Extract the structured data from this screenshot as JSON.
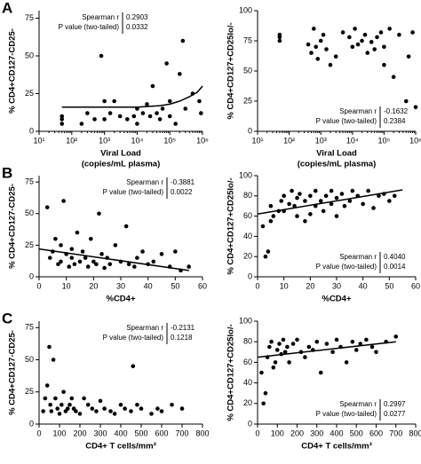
{
  "chart_data": [
    {
      "type": "scatter",
      "panel": "A",
      "ylabel": "% CD4+CD127-CD25-",
      "xlabel": [
        "Viral Load",
        "(copies/mL plasma)"
      ],
      "xscale": "log",
      "xlim": [
        10,
        1000000
      ],
      "xticks": [
        {
          "value": 10,
          "label": "10¹"
        },
        {
          "value": 100,
          "label": "10²"
        },
        {
          "value": 1000,
          "label": "10³"
        },
        {
          "value": 10000,
          "label": "10⁴"
        },
        {
          "value": 100000,
          "label": "10⁵"
        },
        {
          "value": 1000000,
          "label": "10⁶"
        }
      ],
      "ylim": [
        0,
        80
      ],
      "yticks": [
        0,
        25,
        50,
        75
      ],
      "color": "#000000",
      "stats_corner": "top-left",
      "stats": {
        "r_label": "Spearman r",
        "r": "0.2903",
        "p_label": "P value (two-tailed)",
        "p": "0.0332"
      },
      "x": [
        50,
        50,
        50,
        200,
        300,
        500,
        800,
        1000,
        1000,
        1500,
        2000,
        3000,
        5000,
        8000,
        10000,
        10000,
        15000,
        20000,
        25000,
        30000,
        40000,
        50000,
        60000,
        80000,
        100000,
        100000,
        150000,
        200000,
        250000,
        300000,
        500000,
        800000,
        900000
      ],
      "values": [
        10,
        5,
        8,
        5,
        12,
        8,
        50,
        20,
        8,
        12,
        20,
        10,
        8,
        10,
        15,
        5,
        12,
        18,
        10,
        30,
        12,
        8,
        15,
        45,
        20,
        10,
        5,
        38,
        60,
        15,
        25,
        20,
        12
      ],
      "trend": {
        "x": [
          50,
          1000,
          10000,
          50000,
          100000,
          200000,
          400000,
          700000,
          1000000
        ],
        "values": [
          16,
          16,
          16,
          17,
          18,
          20,
          23,
          26,
          30
        ]
      }
    },
    {
      "type": "scatter",
      "ylabel": "% CD4+CD127+CD25lo/-",
      "xlabel": [
        "Viral Load",
        "(copies/mL plasma)"
      ],
      "xscale": "log",
      "xlim": [
        10,
        1000000
      ],
      "xticks": [
        {
          "value": 10,
          "label": "10¹"
        },
        {
          "value": 100,
          "label": "10²"
        },
        {
          "value": 1000,
          "label": "10³"
        },
        {
          "value": 10000,
          "label": "10⁴"
        },
        {
          "value": 100000,
          "label": "10⁵"
        },
        {
          "value": 1000000,
          "label": "10⁶"
        }
      ],
      "ylim": [
        0,
        100
      ],
      "yticks": [
        0,
        25,
        50,
        75,
        100
      ],
      "color": "#000000",
      "stats_corner": "bottom-right",
      "stats": {
        "r_label": "Spearman r",
        "r": "-0.1632",
        "p_label": "P value (two-tailed)",
        "p": "0.2384"
      },
      "x": [
        50,
        50,
        50,
        400,
        500,
        600,
        700,
        800,
        1000,
        1200,
        1500,
        2000,
        3000,
        5000,
        8000,
        10000,
        12000,
        15000,
        20000,
        25000,
        30000,
        40000,
        50000,
        60000,
        80000,
        100000,
        100000,
        150000,
        200000,
        300000,
        500000,
        600000,
        800000,
        1000000
      ],
      "values": [
        78,
        75,
        80,
        72,
        65,
        85,
        70,
        60,
        75,
        80,
        68,
        55,
        62,
        82,
        78,
        70,
        85,
        72,
        75,
        80,
        65,
        74,
        68,
        78,
        82,
        55,
        70,
        85,
        45,
        80,
        25,
        62,
        82,
        20
      ]
    },
    {
      "type": "scatter",
      "panel": "B",
      "ylabel": "% CD4+CD127-CD25-",
      "xlabel": [
        "%CD4+"
      ],
      "xlim": [
        0,
        60
      ],
      "xticks": [
        0,
        10,
        20,
        30,
        40,
        50,
        60
      ],
      "ylim": [
        0,
        80
      ],
      "yticks": [
        0,
        25,
        50,
        75
      ],
      "color": "#000000",
      "stats_corner": "top-right",
      "stats": {
        "r_label": "Spearman r",
        "r": "-0.3881",
        "p_label": "P value (two-tailed)",
        "p": "0.0022"
      },
      "x": [
        3,
        4,
        5,
        6,
        7,
        8,
        8,
        9,
        10,
        11,
        12,
        12,
        13,
        14,
        15,
        16,
        17,
        18,
        19,
        20,
        21,
        22,
        23,
        24,
        25,
        26,
        28,
        30,
        32,
        33,
        35,
        36,
        38,
        40,
        42,
        45,
        48,
        50,
        52,
        55
      ],
      "values": [
        55,
        15,
        20,
        30,
        10,
        12,
        25,
        60,
        18,
        8,
        15,
        22,
        10,
        35,
        12,
        20,
        15,
        8,
        30,
        12,
        10,
        50,
        18,
        7,
        15,
        10,
        25,
        12,
        40,
        10,
        8,
        15,
        20,
        10,
        12,
        18,
        8,
        20,
        5,
        8
      ],
      "trend": {
        "x": [
          0,
          55
        ],
        "values": [
          22,
          5
        ]
      }
    },
    {
      "type": "scatter",
      "ylabel": "% CD4+CD127+CD25lo/-",
      "xlabel": [
        "%CD4+"
      ],
      "xlim": [
        0,
        60
      ],
      "xticks": [
        0,
        10,
        20,
        30,
        40,
        50,
        60
      ],
      "ylim": [
        0,
        100
      ],
      "yticks": [
        0,
        20,
        40,
        60,
        80,
        100
      ],
      "color": "#000000",
      "stats_corner": "bottom-right",
      "stats": {
        "r_label": "Spearman r",
        "r": "0.4040",
        "p_label": "P value (two-tailed)",
        "p": "0.0014"
      },
      "x": [
        2,
        3,
        4,
        5,
        5,
        6,
        8,
        9,
        10,
        10,
        12,
        13,
        14,
        15,
        15,
        16,
        18,
        18,
        20,
        20,
        22,
        22,
        24,
        25,
        26,
        28,
        28,
        30,
        30,
        32,
        33,
        35,
        36,
        38,
        40,
        42,
        44,
        46,
        48,
        50,
        52
      ],
      "values": [
        50,
        20,
        25,
        55,
        70,
        60,
        65,
        75,
        80,
        65,
        72,
        85,
        70,
        78,
        60,
        82,
        75,
        55,
        80,
        62,
        85,
        70,
        75,
        65,
        80,
        72,
        85,
        78,
        60,
        82,
        70,
        75,
        85,
        80,
        72,
        85,
        68,
        80,
        82,
        75,
        80
      ],
      "trend": {
        "x": [
          0,
          55
        ],
        "values": [
          62,
          86
        ]
      }
    },
    {
      "type": "scatter",
      "panel": "C",
      "ylabel": "% CD4+CD127-CD25-",
      "xlabel": [
        "CD4+ T cells/mm³"
      ],
      "xlim": [
        0,
        800
      ],
      "xticks": [
        0,
        100,
        200,
        300,
        400,
        500,
        600,
        700,
        800
      ],
      "ylim": [
        0,
        80
      ],
      "yticks": [
        0,
        25,
        50,
        75
      ],
      "color": "#000000",
      "stats_corner": "top-right",
      "stats": {
        "r_label": "Spearman r",
        "r": "-0.2131",
        "p_label": "P value (two-tailed)",
        "p": "0.1218"
      },
      "x": [
        20,
        30,
        40,
        50,
        55,
        60,
        70,
        80,
        90,
        100,
        110,
        120,
        130,
        140,
        150,
        160,
        170,
        180,
        200,
        220,
        240,
        260,
        280,
        300,
        320,
        350,
        370,
        400,
        420,
        450,
        460,
        480,
        500,
        550,
        580,
        600,
        650,
        700
      ],
      "values": [
        10,
        20,
        30,
        60,
        15,
        10,
        50,
        20,
        12,
        8,
        15,
        25,
        10,
        12,
        15,
        20,
        12,
        10,
        8,
        20,
        15,
        12,
        10,
        18,
        12,
        10,
        8,
        15,
        12,
        10,
        45,
        15,
        12,
        8,
        12,
        10,
        15,
        12
      ]
    },
    {
      "type": "scatter",
      "ylabel": "% CD4+CD127+CD25lo/-",
      "xlabel": [
        "CD4+ T cells/mm³"
      ],
      "xlim": [
        0,
        800
      ],
      "xticks": [
        0,
        100,
        200,
        300,
        400,
        500,
        600,
        700,
        800
      ],
      "ylim": [
        0,
        100
      ],
      "yticks": [
        0,
        20,
        40,
        60,
        80,
        100
      ],
      "color": "#000000",
      "stats_corner": "bottom-right",
      "stats": {
        "r_label": "Spearman r",
        "r": "0.2997",
        "p_label": "P value (two-tailed)",
        "p": "0.0277"
      },
      "x": [
        20,
        30,
        40,
        50,
        60,
        70,
        80,
        90,
        100,
        110,
        120,
        130,
        140,
        150,
        160,
        180,
        200,
        220,
        240,
        260,
        280,
        300,
        320,
        350,
        380,
        400,
        420,
        450,
        480,
        500,
        520,
        550,
        580,
        600,
        650,
        700
      ],
      "values": [
        50,
        20,
        30,
        65,
        75,
        80,
        55,
        60,
        72,
        78,
        68,
        82,
        70,
        75,
        60,
        78,
        82,
        70,
        65,
        75,
        72,
        80,
        50,
        78,
        70,
        82,
        75,
        60,
        80,
        72,
        78,
        82,
        75,
        70,
        80,
        85
      ],
      "trend": {
        "x": [
          0,
          700
        ],
        "values": [
          65,
          80
        ]
      }
    }
  ]
}
